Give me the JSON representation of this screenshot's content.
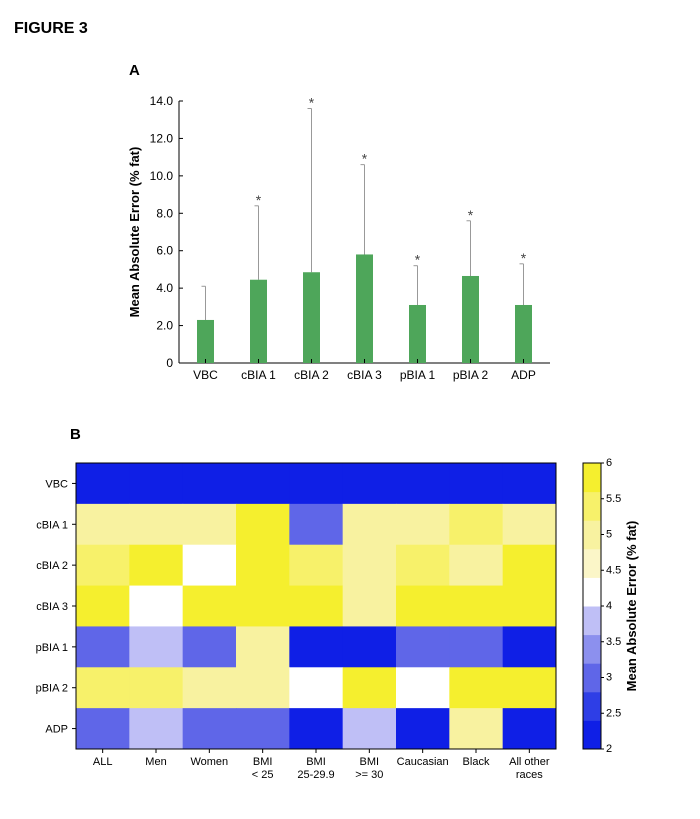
{
  "figure_title": "FIGURE 3",
  "panels": {
    "a_label": "A",
    "b_label": "B"
  },
  "chart_data": [
    {
      "type": "bar",
      "categories": [
        "VBC",
        "cBIA 1",
        "cBIA 2",
        "cBIA 3",
        "pBIA 1",
        "pBIA 2",
        "ADP"
      ],
      "values": [
        2.3,
        4.45,
        4.85,
        5.8,
        3.1,
        4.65,
        3.1
      ],
      "error_upper": [
        4.1,
        8.4,
        13.6,
        10.6,
        5.2,
        7.6,
        5.3
      ],
      "significance": [
        "",
        "*",
        "*",
        "*",
        "*",
        "*",
        "*"
      ],
      "ylabel": "Mean Absolute Error (% fat)",
      "ylim": [
        0,
        14
      ],
      "yticks": [
        "0",
        "2.0",
        "4.0",
        "6.0",
        "8.0",
        "10.0",
        "12.0",
        "14.0"
      ],
      "bar_color": "#4ea65a",
      "grid": false
    },
    {
      "type": "heatmap",
      "rows": [
        "VBC",
        "cBIA 1",
        "cBIA 2",
        "cBIA 3",
        "pBIA 1",
        "pBIA 2",
        "ADP"
      ],
      "columns": [
        [
          "ALL"
        ],
        [
          "Men"
        ],
        [
          "Women"
        ],
        [
          "BMI",
          "< 25"
        ],
        [
          "BMI",
          "25-29.9"
        ],
        [
          "BMI",
          ">= 30"
        ],
        [
          "Caucasian"
        ],
        [
          "Black"
        ],
        [
          "All other",
          "races"
        ]
      ],
      "values": [
        [
          2.0,
          2.0,
          2.0,
          2.0,
          2.0,
          2.4,
          2.0,
          2.4,
          2.1
        ],
        [
          5.1,
          5.1,
          5.1,
          5.8,
          3.1,
          5.1,
          5.1,
          5.3,
          4.9
        ],
        [
          5.3,
          5.8,
          4.1,
          5.8,
          5.3,
          5.0,
          5.3,
          4.9,
          5.8
        ],
        [
          5.8,
          4.1,
          5.8,
          5.8,
          5.8,
          5.0,
          5.8,
          5.8,
          5.8
        ],
        [
          3.1,
          3.6,
          3.1,
          5.0,
          2.4,
          2.4,
          3.1,
          3.1,
          2.4
        ],
        [
          5.3,
          5.3,
          5.0,
          5.0,
          4.1,
          5.8,
          4.1,
          5.6,
          5.8
        ],
        [
          3.1,
          3.6,
          3.1,
          3.1,
          2.0,
          3.6,
          2.4,
          5.0,
          2.4
        ]
      ],
      "colorbar": {
        "label": "Mean Absolute Error (% fat)",
        "range": [
          2,
          6
        ],
        "ticks": [
          "2",
          "2.5",
          "3",
          "3.5",
          "4",
          "4.5",
          "5",
          "5.5",
          "6"
        ],
        "colors": [
          "#0f1fe6",
          "#2e3ee6",
          "#5f66e8",
          "#8c90ee",
          "#bfbff6",
          "#ffffff",
          "#fbf6c8",
          "#f8f2a0",
          "#f7f16a",
          "#f5ef2e"
        ]
      }
    }
  ]
}
